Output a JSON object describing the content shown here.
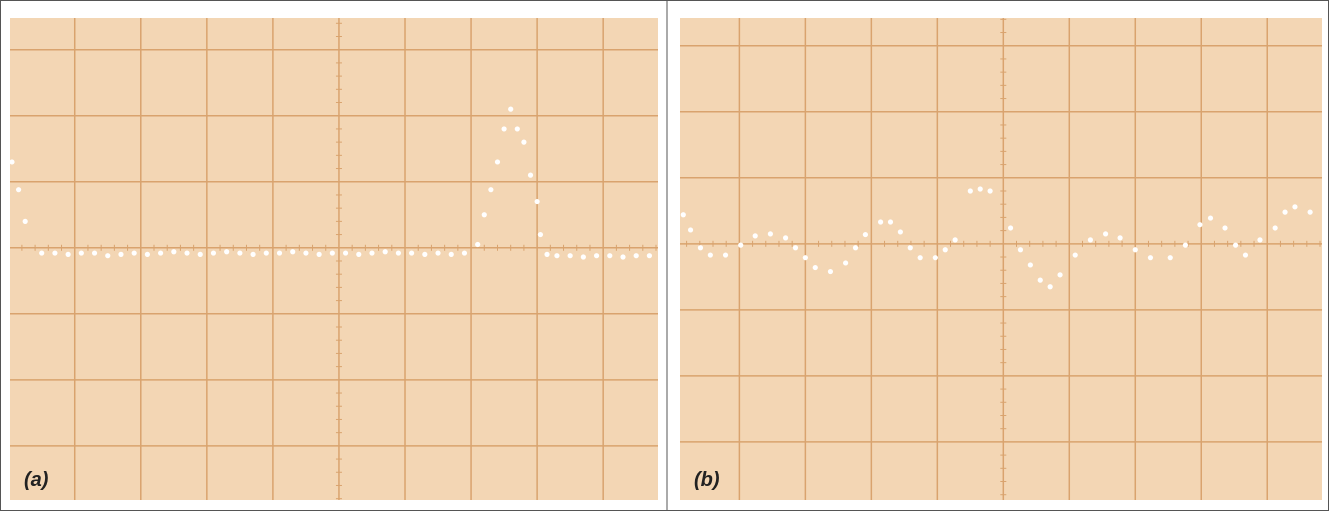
{
  "chart_data": [
    {
      "type": "scatter",
      "title": "(a)",
      "color": "#ffffff",
      "background": "#f3d6b4",
      "grid": true,
      "grid_color": "#d9a36e",
      "xlim": [
        -4.98,
        4.83
      ],
      "ylim": [
        -3.82,
        3.48
      ],
      "x": [
        -4.95,
        -4.85,
        -4.75,
        -4.5,
        -4.3,
        -4.1,
        -3.9,
        -3.7,
        -3.5,
        -3.3,
        -3.1,
        -2.9,
        -2.7,
        -2.5,
        -2.3,
        -2.1,
        -1.9,
        -1.7,
        -1.5,
        -1.3,
        -1.1,
        -0.9,
        -0.7,
        -0.5,
        -0.3,
        -0.1,
        0.1,
        0.3,
        0.5,
        0.7,
        0.9,
        1.1,
        1.3,
        1.5,
        1.7,
        1.9,
        2.1,
        2.2,
        2.3,
        2.4,
        2.5,
        2.6,
        2.7,
        2.8,
        2.9,
        3.0,
        3.05,
        3.15,
        3.3,
        3.5,
        3.7,
        3.9,
        4.1,
        4.3,
        4.5,
        4.7
      ],
      "y": [
        1.3,
        0.88,
        0.4,
        -0.08,
        -0.08,
        -0.1,
        -0.08,
        -0.08,
        -0.12,
        -0.1,
        -0.08,
        -0.1,
        -0.08,
        -0.06,
        -0.08,
        -0.1,
        -0.08,
        -0.06,
        -0.08,
        -0.1,
        -0.08,
        -0.08,
        -0.06,
        -0.08,
        -0.1,
        -0.08,
        -0.08,
        -0.1,
        -0.08,
        -0.06,
        -0.08,
        -0.08,
        -0.1,
        -0.08,
        -0.1,
        -0.08,
        0.05,
        0.5,
        0.88,
        1.3,
        1.8,
        2.1,
        1.8,
        1.6,
        1.1,
        0.7,
        0.2,
        -0.1,
        -0.12,
        -0.12,
        -0.14,
        -0.12,
        -0.12,
        -0.14,
        -0.12,
        -0.12
      ]
    },
    {
      "type": "scatter",
      "title": "(b)",
      "color": "#ffffff",
      "background": "#f3d6b4",
      "grid": true,
      "grid_color": "#d9a36e",
      "xlim": [
        -4.9,
        4.83
      ],
      "ylim": [
        -3.88,
        3.42
      ],
      "x": [
        -4.85,
        -4.74,
        -4.59,
        -4.44,
        -4.21,
        -3.98,
        -3.76,
        -3.53,
        -3.3,
        -3.15,
        -3.0,
        -2.85,
        -2.62,
        -2.39,
        -2.24,
        -2.09,
        -1.86,
        -1.71,
        -1.56,
        -1.41,
        -1.26,
        -1.03,
        -0.88,
        -0.73,
        -0.5,
        -0.35,
        -0.2,
        0.11,
        0.26,
        0.41,
        0.56,
        0.71,
        0.86,
        1.09,
        1.32,
        1.55,
        1.77,
        2.0,
        2.23,
        2.53,
        2.76,
        2.98,
        3.14,
        3.36,
        3.52,
        3.67,
        3.89,
        4.12,
        4.27,
        4.42,
        4.65
      ],
      "y": [
        0.44,
        0.21,
        -0.06,
        -0.17,
        -0.17,
        -0.02,
        0.12,
        0.15,
        0.09,
        -0.06,
        -0.21,
        -0.36,
        -0.42,
        -0.29,
        -0.06,
        0.14,
        0.33,
        0.33,
        0.18,
        -0.06,
        -0.21,
        -0.21,
        -0.09,
        0.06,
        0.8,
        0.83,
        0.8,
        0.24,
        -0.09,
        -0.32,
        -0.55,
        -0.65,
        -0.47,
        -0.17,
        0.06,
        0.15,
        0.09,
        -0.09,
        -0.21,
        -0.21,
        -0.02,
        0.29,
        0.39,
        0.24,
        -0.02,
        -0.17,
        0.06,
        0.24,
        0.48,
        0.56,
        0.48
      ]
    }
  ]
}
